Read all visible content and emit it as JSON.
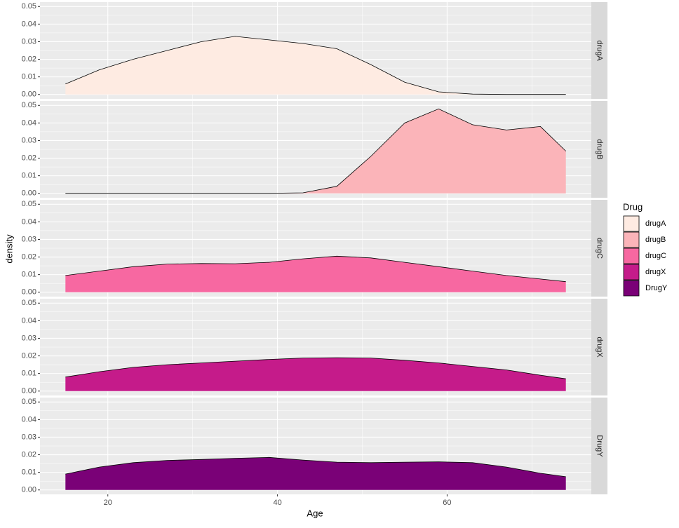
{
  "chart_data": {
    "type": "density",
    "x_label": "Age",
    "y_label": "density",
    "legend_title": "Drug",
    "x": [
      15,
      19,
      23,
      27,
      31,
      35,
      39,
      43,
      47,
      51,
      55,
      59,
      63,
      67,
      71,
      74
    ],
    "series": [
      {
        "name": "drugA",
        "color": "#FEEBE2",
        "values": [
          0.006,
          0.014,
          0.02,
          0.025,
          0.03,
          0.033,
          0.031,
          0.029,
          0.026,
          0.017,
          0.007,
          0.0015,
          0.0002,
          0,
          0,
          0
        ]
      },
      {
        "name": "drugB",
        "color": "#FBB4B9",
        "values": [
          0,
          0,
          0,
          0,
          0,
          0,
          0,
          0.0003,
          0.004,
          0.021,
          0.04,
          0.048,
          0.039,
          0.036,
          0.038,
          0.024
        ]
      },
      {
        "name": "drugC",
        "color": "#F768A1",
        "values": [
          0.0095,
          0.012,
          0.0145,
          0.016,
          0.0163,
          0.0162,
          0.017,
          0.019,
          0.0205,
          0.0195,
          0.017,
          0.0145,
          0.012,
          0.0095,
          0.0075,
          0.006
        ]
      },
      {
        "name": "drugX",
        "color": "#C51B8A",
        "values": [
          0.008,
          0.011,
          0.0135,
          0.015,
          0.016,
          0.017,
          0.018,
          0.0188,
          0.019,
          0.0188,
          0.0175,
          0.016,
          0.014,
          0.012,
          0.009,
          0.007
        ]
      },
      {
        "name": "DrugY",
        "color": "#7A0177",
        "values": [
          0.009,
          0.013,
          0.0155,
          0.0168,
          0.0173,
          0.018,
          0.0185,
          0.017,
          0.0158,
          0.0155,
          0.0158,
          0.016,
          0.0155,
          0.013,
          0.0095,
          0.0075
        ]
      }
    ],
    "xlim": [
      12,
      77
    ],
    "xticks": [
      20,
      40,
      60
    ],
    "xminor": [
      30,
      50,
      70
    ],
    "ylim": [
      -0.0025,
      0.0525
    ],
    "yticks": [
      {
        "value": 0,
        "label": "0.00"
      },
      {
        "value": 0.01,
        "label": "0.01"
      },
      {
        "value": 0.02,
        "label": "0.02"
      },
      {
        "value": 0.03,
        "label": "0.03"
      },
      {
        "value": 0.04,
        "label": "0.04"
      },
      {
        "value": 0.05,
        "label": "0.05"
      }
    ],
    "yminor": [
      0.005,
      0.015,
      0.025,
      0.035,
      0.045
    ],
    "grid": true,
    "legend": "right"
  }
}
